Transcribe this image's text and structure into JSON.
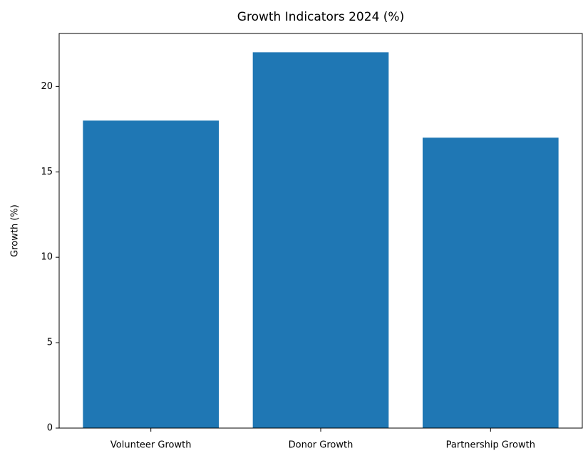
{
  "chart_data": {
    "type": "bar",
    "title": "Growth Indicators 2024 (%)",
    "y_label": "Growth (%)",
    "categories": [
      "Volunteer Growth",
      "Donor Growth",
      "Partnership Growth"
    ],
    "values": [
      18,
      22,
      17
    ],
    "color": "#1f77b4",
    "ylim": [
      0,
      23.1
    ],
    "yticks": [
      0,
      5,
      10,
      15,
      20
    ]
  }
}
